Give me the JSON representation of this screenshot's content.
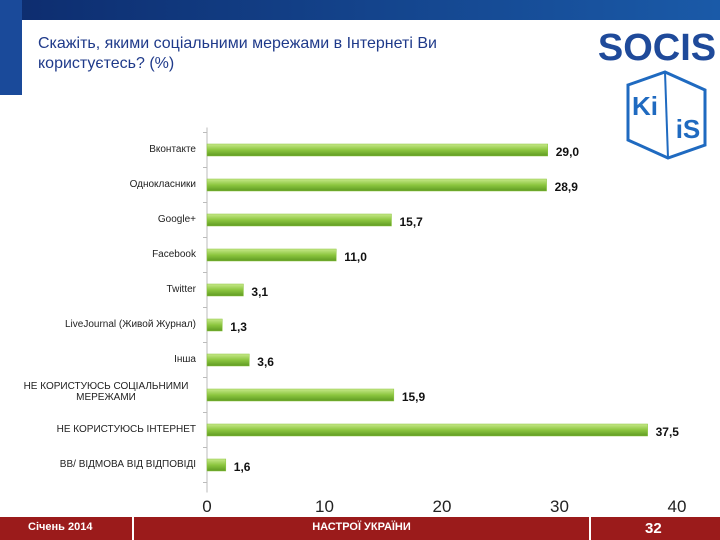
{
  "chart_data": {
    "type": "barh",
    "title": "Скажіть, якими соціальними мережами в Інтернеті Ви користуєтесь? (%)",
    "categories": [
      "Вконтакте",
      "Однокласники",
      "Google+",
      "Facebook",
      "Twitter",
      "LiveJournal (Живой Журнал)",
      "Інша",
      "НЕ КОРИСТУЮСЬ СОЦІАЛЬНИМИ МЕРЕЖАМИ",
      "НЕ КОРИСТУЮСЬ ІНТЕРНЕТ",
      "ВВ/ ВІДМОВА ВІД ВІДПОВІДІ"
    ],
    "values": [
      29.0,
      28.9,
      15.7,
      11.0,
      3.1,
      1.3,
      3.6,
      15.9,
      37.5,
      1.6
    ],
    "value_labels": [
      "29,0",
      "28,9",
      "15,7",
      "11,0",
      "3,1",
      "1,3",
      "3,6",
      "15,9",
      "37,5",
      "1,6"
    ],
    "color": "#8cc63f",
    "xlim": [
      0,
      40
    ],
    "xticks": [
      0,
      10,
      20,
      30,
      40
    ]
  },
  "logos": {
    "socis": "SOCIS",
    "kiis": [
      "Ki",
      "iS"
    ]
  },
  "footer": {
    "date": "Січень 2014",
    "center": "НАСТРОЇ УКРАЇНИ",
    "page": "32"
  }
}
